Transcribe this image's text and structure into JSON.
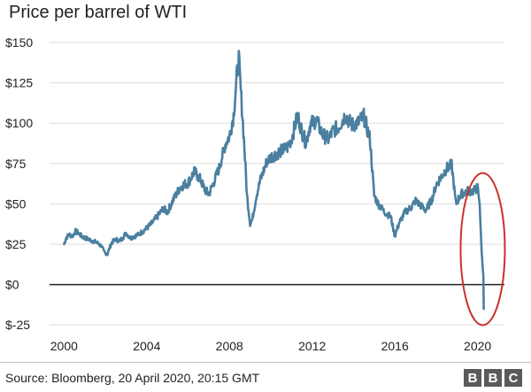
{
  "chart_data": {
    "type": "line",
    "title": "Price per barrel of WTI",
    "xlabel": "",
    "ylabel": "",
    "xlim": [
      1999.3,
      2021.3
    ],
    "ylim": [
      -32,
      150
    ],
    "x_ticks": [
      2000,
      2004,
      2008,
      2012,
      2016,
      2020
    ],
    "x_tick_labels": [
      "2000",
      "2004",
      "2008",
      "2012",
      "2016",
      "2020"
    ],
    "y_ticks": [
      150,
      125,
      100,
      75,
      50,
      25,
      0,
      -25
    ],
    "y_tick_labels": [
      "$150",
      "$125",
      "$100",
      "$75",
      "$50",
      "$25",
      "$0",
      "$-25"
    ],
    "grid": true,
    "legend": "none",
    "colors": {
      "line": "#4a7fa0",
      "zero_line": "#222222",
      "grid": "#dddddd",
      "highlight": "#c8332b"
    },
    "series": [
      {
        "x": [
          2000.0,
          2000.1,
          2000.25,
          2000.4,
          2000.55,
          2000.7,
          2000.85,
          2001.0,
          2001.2,
          2001.4,
          2001.6,
          2001.8,
          2001.95,
          2002.1,
          2002.3,
          2002.5,
          2002.7,
          2002.9,
          2003.0,
          2003.2,
          2003.4,
          2003.6,
          2003.8,
          2004.0,
          2004.25,
          2004.5,
          2004.8,
          2005.0,
          2005.3,
          2005.6,
          2005.8,
          2006.0,
          2006.3,
          2006.6,
          2006.8,
          2007.0,
          2007.2,
          2007.5,
          2007.8,
          2008.0,
          2008.2,
          2008.35,
          2008.45,
          2008.55,
          2008.7,
          2008.85,
          2009.0,
          2009.1,
          2009.3,
          2009.5,
          2009.8,
          2010.0,
          2010.4,
          2010.8,
          2011.0,
          2011.3,
          2011.5,
          2011.7,
          2011.9,
          2012.2,
          2012.5,
          2012.8,
          2013.0,
          2013.3,
          2013.6,
          2013.9,
          2014.2,
          2014.5,
          2014.8,
          2015.0,
          2015.2,
          2015.5,
          2015.8,
          2016.0,
          2016.2,
          2016.5,
          2016.8,
          2017.0,
          2017.5,
          2017.8,
          2018.0,
          2018.3,
          2018.5,
          2018.75,
          2018.95,
          2019.2,
          2019.5,
          2019.8,
          2020.0,
          2020.1,
          2020.2,
          2020.28,
          2020.3
        ],
        "y": [
          25,
          29,
          31,
          30,
          33,
          32,
          30,
          29,
          28,
          27,
          26,
          24,
          20,
          19,
          26,
          28,
          27,
          30,
          32,
          29,
          30,
          31,
          33,
          35,
          38,
          42,
          47,
          45,
          53,
          60,
          62,
          63,
          70,
          65,
          59,
          56,
          62,
          72,
          87,
          92,
          105,
          128,
          140,
          120,
          90,
          55,
          38,
          40,
          55,
          65,
          76,
          79,
          82,
          85,
          90,
          105,
          95,
          88,
          99,
          102,
          93,
          90,
          95,
          98,
          105,
          99,
          100,
          104,
          90,
          55,
          50,
          45,
          42,
          30,
          38,
          45,
          48,
          52,
          46,
          53,
          62,
          68,
          72,
          74,
          50,
          56,
          58,
          58,
          60,
          50,
          20,
          5,
          -15
        ]
      }
    ],
    "annotations": [
      "red ellipse highlighting April 2020 crash below $0"
    ]
  },
  "footer": {
    "source": "Source: Bloomberg, 20 April 2020, 20:15 GMT",
    "logo_letters": [
      "B",
      "B",
      "C"
    ]
  }
}
